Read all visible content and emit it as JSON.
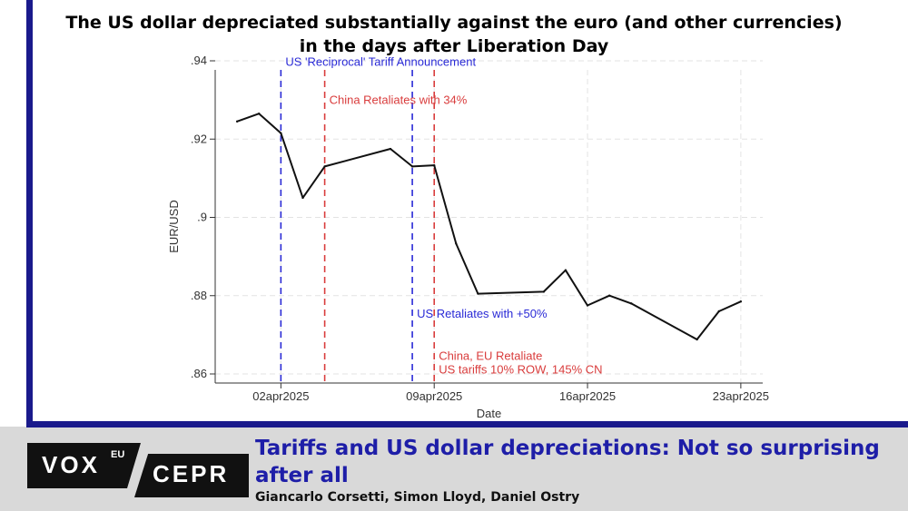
{
  "chart_data": {
    "type": "line",
    "title": [
      "The US dollar depreciated substantially against the euro (and other currencies)",
      "in the days after Liberation Day"
    ],
    "xlabel": "Date",
    "ylabel": "EUR/USD",
    "x_tick_labels": [
      "02apr2025",
      "09apr2025",
      "16apr2025",
      "23apr2025"
    ],
    "y_tick_labels": [
      ".86",
      ".88",
      ".9",
      ".92",
      ".94"
    ],
    "ylim": [
      0.86,
      0.94
    ],
    "xlim": [
      "2025-03-30",
      "2025-04-24"
    ],
    "grid": true,
    "series": [
      {
        "name": "",
        "x": [
          "2025-03-31",
          "2025-04-01",
          "2025-04-02",
          "2025-04-03",
          "2025-04-04",
          "2025-04-07",
          "2025-04-08",
          "2025-04-09",
          "2025-04-10",
          "2025-04-11",
          "2025-04-14",
          "2025-04-15",
          "2025-04-16",
          "2025-04-17",
          "2025-04-18",
          "2025-04-21",
          "2025-04-22",
          "2025-04-23"
        ],
        "values": [
          0.9245,
          0.9265,
          0.9215,
          0.905,
          0.913,
          0.9175,
          0.913,
          0.9133,
          0.8933,
          0.8805,
          0.881,
          0.8865,
          0.8775,
          0.88,
          0.878,
          0.8688,
          0.876,
          0.8785
        ]
      }
    ],
    "events": [
      {
        "date": "2025-04-02",
        "color": "#2a2ad6",
        "lines": [
          "US 'Reciprocal' Tariff Announcement"
        ],
        "label_y": 0.9399
      },
      {
        "date": "2025-04-04",
        "color": "#d93c3c",
        "lines": [
          "China Retaliates with 34%"
        ],
        "label_y": 0.9301
      },
      {
        "date": "2025-04-08",
        "color": "#2a2ad6",
        "lines": [
          "US Retaliates with +50%"
        ],
        "label_y": 0.8755
      },
      {
        "date": "2025-04-09",
        "color": "#d93c3c",
        "lines": [
          "China, EU Retaliate",
          "US tariffs 10% ROW, 145% CN"
        ],
        "label_y": 0.8648
      }
    ]
  },
  "footer": {
    "logo_vox": "VOX",
    "logo_eu": "EU",
    "logo_cepr": "CEPR",
    "article_title": "Tariffs and US dollar depreciations: Not so surprising after all",
    "authors": "Giancarlo Corsetti, Simon Lloyd, Daniel Ostry"
  }
}
